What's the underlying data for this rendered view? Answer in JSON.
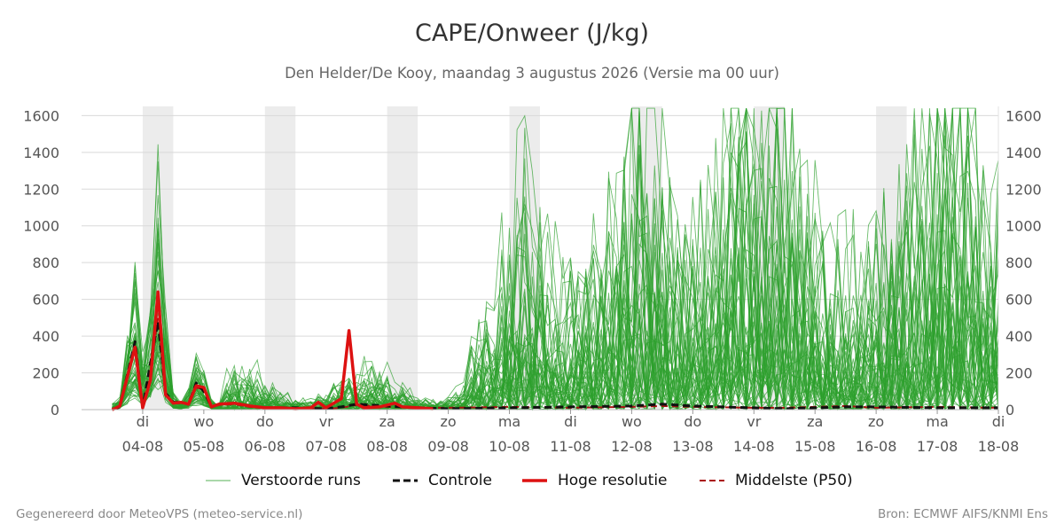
{
  "title": "CAPE/Onweer (J/kg)",
  "subtitle": "Den Helder/De Kooy, maandag  3 augustus 2026 (Versie ma 00 uur)",
  "footer_left": "Gegenereerd door MeteoVPS (meteo-service.nl)",
  "footer_right": "Bron: ECMWF AIFS/KNMI Ens",
  "colors": {
    "ensemble": "#2ca02c",
    "control": "#111111",
    "hires": "#dd1111",
    "median": "#aa1111",
    "band": "#ececec",
    "grid": "#d9d9d9"
  },
  "legend": [
    {
      "key": "ensemble",
      "label": "Verstoorde runs",
      "style": "thin-solid"
    },
    {
      "key": "control",
      "label": "Controle",
      "style": "dashed"
    },
    {
      "key": "hires",
      "label": "Hoge resolutie",
      "style": "thick-solid"
    },
    {
      "key": "median",
      "label": "Middelste (P50)",
      "style": "dashed"
    }
  ],
  "chart_data": {
    "type": "line",
    "unit": "J/kg",
    "x_unit": "day offset from 2026-08-03 00 UTC",
    "xlim": [
      0,
      15
    ],
    "ylim": [
      0,
      1650
    ],
    "y_ticks": [
      0,
      200,
      400,
      600,
      800,
      1000,
      1200,
      1400,
      1600
    ],
    "y_axis_both_sides": true,
    "grid": true,
    "legend_position": "bottom",
    "x_ticks": [
      {
        "x": 1,
        "day": "di",
        "date": "04-08"
      },
      {
        "x": 2,
        "day": "wo",
        "date": "05-08"
      },
      {
        "x": 3,
        "day": "do",
        "date": "06-08"
      },
      {
        "x": 4,
        "day": "vr",
        "date": "07-08"
      },
      {
        "x": 5,
        "day": "za",
        "date": "08-08"
      },
      {
        "x": 6,
        "day": "zo",
        "date": "09-08"
      },
      {
        "x": 7,
        "day": "ma",
        "date": "10-08"
      },
      {
        "x": 8,
        "day": "di",
        "date": "11-08"
      },
      {
        "x": 9,
        "day": "wo",
        "date": "12-08"
      },
      {
        "x": 10,
        "day": "do",
        "date": "13-08"
      },
      {
        "x": 11,
        "day": "vr",
        "date": "14-08"
      },
      {
        "x": 12,
        "day": "za",
        "date": "15-08"
      },
      {
        "x": 13,
        "day": "zo",
        "date": "16-08"
      },
      {
        "x": 14,
        "day": "ma",
        "date": "17-08"
      },
      {
        "x": 15,
        "day": "di",
        "date": "18-08"
      }
    ],
    "shaded_bands": [
      [
        1,
        1.5
      ],
      [
        3,
        3.5
      ],
      [
        5,
        5.5
      ],
      [
        7,
        7.5
      ],
      [
        9,
        9.5
      ],
      [
        11,
        11.5
      ],
      [
        13,
        13.5
      ]
    ],
    "series": [
      {
        "name": "Hoge resolutie",
        "style": "thick-solid",
        "points": [
          [
            0.5,
            0
          ],
          [
            0.625,
            20
          ],
          [
            0.875,
            340
          ],
          [
            1,
            10
          ],
          [
            1.125,
            160
          ],
          [
            1.25,
            640
          ],
          [
            1.375,
            80
          ],
          [
            1.5,
            35
          ],
          [
            1.625,
            40
          ],
          [
            1.75,
            30
          ],
          [
            1.875,
            130
          ],
          [
            2,
            120
          ],
          [
            2.125,
            15
          ],
          [
            2.25,
            30
          ],
          [
            2.5,
            35
          ],
          [
            2.75,
            20
          ],
          [
            3,
            10
          ],
          [
            3.25,
            10
          ],
          [
            3.5,
            5
          ],
          [
            3.75,
            10
          ],
          [
            3.875,
            40
          ],
          [
            4,
            10
          ],
          [
            4.25,
            60
          ],
          [
            4.375,
            430
          ],
          [
            4.5,
            30
          ],
          [
            4.625,
            10
          ],
          [
            4.875,
            15
          ],
          [
            5,
            25
          ],
          [
            5.125,
            35
          ],
          [
            5.25,
            15
          ],
          [
            5.5,
            10
          ],
          [
            5.75,
            5
          ]
        ]
      },
      {
        "name": "Controle",
        "style": "dashed",
        "points": [
          [
            0.5,
            0
          ],
          [
            0.625,
            15
          ],
          [
            0.875,
            370
          ],
          [
            1,
            10
          ],
          [
            1.125,
            250
          ],
          [
            1.25,
            480
          ],
          [
            1.375,
            90
          ],
          [
            1.5,
            40
          ],
          [
            1.625,
            40
          ],
          [
            1.75,
            30
          ],
          [
            1.875,
            145
          ],
          [
            2,
            100
          ],
          [
            2.125,
            15
          ],
          [
            2.25,
            30
          ],
          [
            2.5,
            35
          ],
          [
            2.75,
            20
          ],
          [
            3,
            10
          ],
          [
            3.5,
            10
          ],
          [
            4,
            5
          ],
          [
            4.25,
            15
          ],
          [
            4.5,
            30
          ],
          [
            5,
            20
          ],
          [
            5.5,
            10
          ],
          [
            6,
            5
          ],
          [
            7,
            10
          ],
          [
            8,
            15
          ],
          [
            9,
            20
          ],
          [
            9.5,
            30
          ],
          [
            10,
            20
          ],
          [
            10.5,
            15
          ],
          [
            11,
            10
          ],
          [
            11.5,
            5
          ],
          [
            12,
            10
          ],
          [
            12.5,
            15
          ],
          [
            13,
            15
          ],
          [
            14,
            10
          ],
          [
            15,
            10
          ]
        ]
      },
      {
        "name": "Middelste (P50)",
        "style": "dashed",
        "points": [
          [
            0.5,
            0
          ],
          [
            0.625,
            10
          ],
          [
            0.875,
            330
          ],
          [
            1,
            10
          ],
          [
            1.125,
            220
          ],
          [
            1.25,
            500
          ],
          [
            1.375,
            80
          ],
          [
            1.5,
            35
          ],
          [
            1.625,
            35
          ],
          [
            1.75,
            30
          ],
          [
            1.875,
            120
          ],
          [
            2,
            110
          ],
          [
            2.125,
            15
          ],
          [
            2.25,
            25
          ],
          [
            2.5,
            30
          ],
          [
            2.75,
            15
          ],
          [
            3,
            10
          ],
          [
            3.5,
            5
          ],
          [
            4,
            5
          ],
          [
            4.25,
            10
          ],
          [
            4.5,
            25
          ],
          [
            5,
            15
          ],
          [
            5.5,
            10
          ],
          [
            6,
            10
          ],
          [
            7,
            15
          ],
          [
            8,
            10
          ],
          [
            9,
            15
          ],
          [
            9.5,
            20
          ],
          [
            10,
            15
          ],
          [
            11,
            10
          ],
          [
            11.5,
            10
          ],
          [
            12,
            15
          ],
          [
            12.5,
            20
          ],
          [
            13,
            10
          ],
          [
            14,
            15
          ],
          [
            15,
            10
          ]
        ]
      }
    ]
  }
}
